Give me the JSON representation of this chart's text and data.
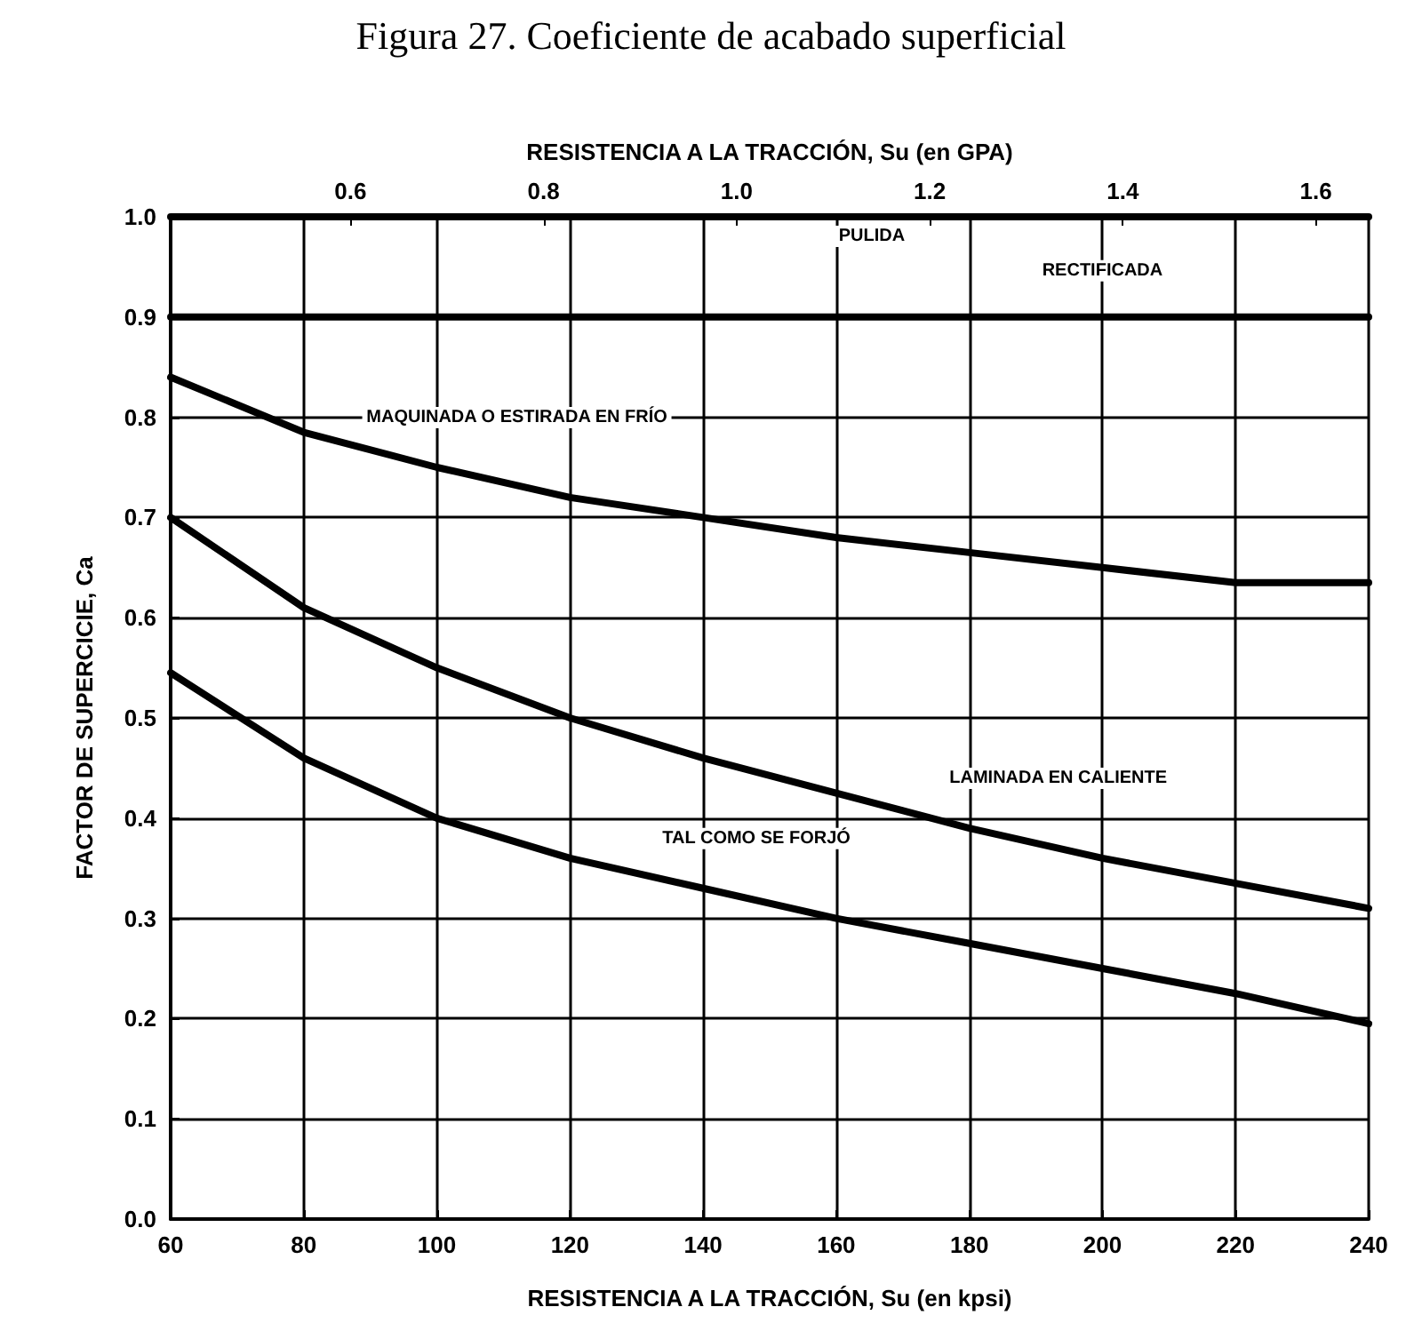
{
  "chart_data": {
    "type": "line",
    "title": "Figura 27. Coeficiente de acabado superficial",
    "xlabel": "RESISTENCIA A LA TRACCIÓN, Su (en kpsi)",
    "x2label": "RESISTENCIA A LA TRACCIÓN, Su (en GPA)",
    "ylabel": "FACTOR DE SUPERCICIE, Ca",
    "x": [
      60,
      80,
      100,
      120,
      140,
      160,
      180,
      200,
      220,
      240
    ],
    "series": [
      {
        "name": "PULIDA",
        "color": "#000000",
        "values": [
          1.0,
          1.0,
          1.0,
          1.0,
          1.0,
          1.0,
          1.0,
          1.0,
          1.0,
          1.0
        ]
      },
      {
        "name": "RECTIFICADA",
        "color": "#000000",
        "values": [
          0.9,
          0.9,
          0.9,
          0.9,
          0.9,
          0.9,
          0.9,
          0.9,
          0.9,
          0.9
        ]
      },
      {
        "name": "MAQUINADA O ESTIRADA EN FRÍO",
        "color": "#000000",
        "values": [
          0.84,
          0.785,
          0.75,
          0.72,
          0.7,
          0.68,
          0.665,
          0.65,
          0.635,
          0.635
        ]
      },
      {
        "name": "LAMINADA EN CALIENTE",
        "color": "#000000",
        "values": [
          0.7,
          0.61,
          0.55,
          0.5,
          0.46,
          0.425,
          0.39,
          0.36,
          0.335,
          0.31
        ]
      },
      {
        "name": "TAL COMO SE FORJÓ",
        "color": "#000000",
        "values": [
          0.545,
          0.46,
          0.4,
          0.36,
          0.33,
          0.3,
          0.275,
          0.25,
          0.225,
          0.195
        ]
      }
    ],
    "xlim": [
      60,
      240
    ],
    "xticks": [
      60,
      80,
      100,
      120,
      140,
      160,
      180,
      200,
      220,
      240
    ],
    "x2lim": [
      0.4137,
      1.6547
    ],
    "x2ticks": [
      0.6,
      0.8,
      {
        "value": 1,
        "label": "1.0"
      },
      1.2,
      1.4,
      1.6
    ],
    "ylim": [
      0,
      1
    ],
    "yticks": [
      {
        "value": 0,
        "label": "0.0"
      },
      0.1,
      0.2,
      0.3,
      0.4,
      0.5,
      0.6,
      0.7,
      0.8,
      0.9,
      {
        "value": 1,
        "label": "1.0"
      }
    ],
    "grid": true,
    "legend": false,
    "marker": "none",
    "line_style": "solid"
  }
}
